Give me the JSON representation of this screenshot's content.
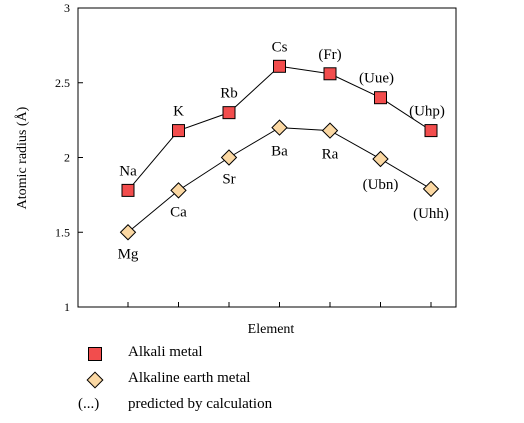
{
  "chart_data": {
    "type": "line",
    "xlabel": "Element",
    "ylabel": "Atomic radius (Å)",
    "ylim": [
      1,
      3
    ],
    "yticks": [
      "1",
      "1.5",
      "2",
      "2.5",
      "3"
    ],
    "grid": false,
    "legend_position": "bottom",
    "series": [
      {
        "name": "Alkali metal",
        "marker": "square",
        "color": "#f24d4d",
        "points": [
          {
            "label": "Na",
            "x": 1,
            "y": 1.78
          },
          {
            "label": "K",
            "x": 2,
            "y": 2.18
          },
          {
            "label": "Rb",
            "x": 3,
            "y": 2.3
          },
          {
            "label": "Cs",
            "x": 4,
            "y": 2.61
          },
          {
            "label": "(Fr)",
            "x": 5,
            "y": 2.56
          },
          {
            "label": "(Uue)",
            "x": 6,
            "y": 2.4
          },
          {
            "label": "(Uhp)",
            "x": 7,
            "y": 2.18
          }
        ]
      },
      {
        "name": "Alkaline earth metal",
        "marker": "diamond",
        "color": "#fbd8a3",
        "points": [
          {
            "label": "Mg",
            "x": 1,
            "y": 1.5
          },
          {
            "label": "Ca",
            "x": 2,
            "y": 1.78
          },
          {
            "label": "Sr",
            "x": 3,
            "y": 2.0
          },
          {
            "label": "Ba",
            "x": 4,
            "y": 2.2
          },
          {
            "label": "Ra",
            "x": 5,
            "y": 2.18
          },
          {
            "label": "(Ubn)",
            "x": 6,
            "y": 1.99
          },
          {
            "label": "(Uhh)",
            "x": 7,
            "y": 1.79
          }
        ]
      }
    ]
  },
  "legend": {
    "items": [
      {
        "label": "Alkali metal"
      },
      {
        "label": "Alkaline earth metal"
      }
    ],
    "note_symbol": "(...)",
    "note_text": "predicted by calculation"
  }
}
